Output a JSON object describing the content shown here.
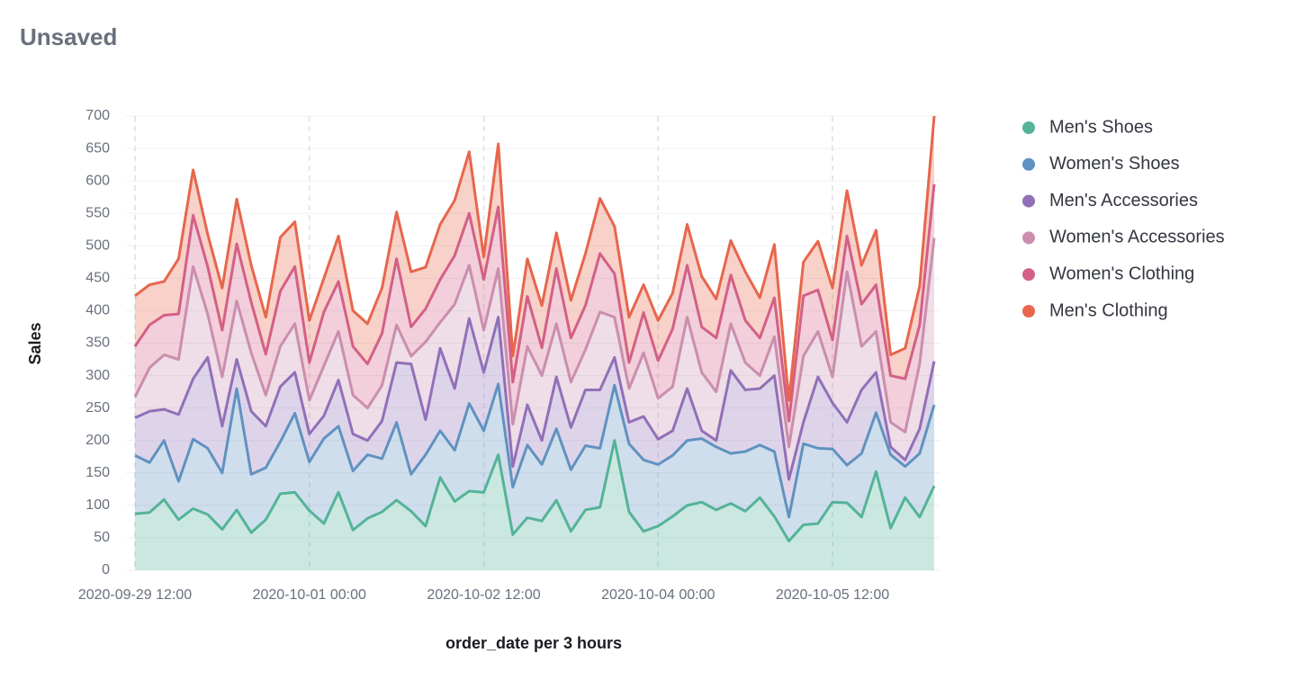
{
  "header": {
    "title": "Unsaved"
  },
  "chart_data": {
    "type": "stacked-area",
    "x_label": "order_date per 3 hours",
    "y_label": "Sales",
    "x": [
      "2020-09-29 12:00",
      "2020-09-29 15:00",
      "2020-09-29 18:00",
      "2020-09-29 21:00",
      "2020-09-30 00:00",
      "2020-09-30 03:00",
      "2020-09-30 06:00",
      "2020-09-30 09:00",
      "2020-09-30 12:00",
      "2020-09-30 15:00",
      "2020-09-30 18:00",
      "2020-09-30 21:00",
      "2020-10-01 00:00",
      "2020-10-01 03:00",
      "2020-10-01 06:00",
      "2020-10-01 09:00",
      "2020-10-01 12:00",
      "2020-10-01 15:00",
      "2020-10-01 18:00",
      "2020-10-01 21:00",
      "2020-10-02 00:00",
      "2020-10-02 03:00",
      "2020-10-02 06:00",
      "2020-10-02 09:00",
      "2020-10-02 12:00",
      "2020-10-02 15:00",
      "2020-10-02 18:00",
      "2020-10-02 21:00",
      "2020-10-03 00:00",
      "2020-10-03 03:00",
      "2020-10-03 06:00",
      "2020-10-03 09:00",
      "2020-10-03 12:00",
      "2020-10-03 15:00",
      "2020-10-03 18:00",
      "2020-10-03 21:00",
      "2020-10-04 00:00",
      "2020-10-04 03:00",
      "2020-10-04 06:00",
      "2020-10-04 09:00",
      "2020-10-04 12:00",
      "2020-10-04 15:00",
      "2020-10-04 18:00",
      "2020-10-04 21:00",
      "2020-10-05 00:00",
      "2020-10-05 03:00",
      "2020-10-05 06:00",
      "2020-10-05 09:00",
      "2020-10-05 12:00",
      "2020-10-05 15:00",
      "2020-10-05 18:00",
      "2020-10-05 21:00",
      "2020-10-06 00:00",
      "2020-10-06 03:00",
      "2020-10-06 06:00",
      "2020-10-06 09:00"
    ],
    "xticks": [
      "2020-09-29 12:00",
      "2020-10-01 00:00",
      "2020-10-02 12:00",
      "2020-10-04 00:00",
      "2020-10-05 12:00"
    ],
    "ylim": [
      0,
      700
    ],
    "yticks": [
      0,
      50,
      100,
      150,
      200,
      250,
      300,
      350,
      400,
      450,
      500,
      550,
      600,
      650,
      700
    ],
    "grid": true,
    "legend": "right",
    "series": [
      {
        "name": "Men's Shoes",
        "color": "#54b399",
        "values": [
          87,
          89,
          109,
          78,
          95,
          86,
          63,
          93,
          58,
          78,
          118,
          120,
          92,
          72,
          120,
          62,
          80,
          90,
          108,
          91,
          68,
          143,
          106,
          122,
          120,
          178,
          55,
          81,
          76,
          108,
          60,
          93,
          97,
          200,
          90,
          60,
          68,
          83,
          100,
          105,
          93,
          103,
          91,
          112,
          83,
          45,
          70,
          72,
          105,
          104,
          82,
          152,
          65,
          112,
          82,
          130
        ]
      },
      {
        "name": "Women's Shoes",
        "color": "#6092c0",
        "values": [
          90,
          77,
          91,
          59,
          107,
          102,
          87,
          187,
          90,
          80,
          80,
          122,
          75,
          131,
          102,
          91,
          98,
          82,
          120,
          57,
          110,
          72,
          79,
          135,
          95,
          109,
          73,
          112,
          87,
          110,
          95,
          99,
          91,
          85,
          105,
          110,
          95,
          94,
          100,
          98,
          97,
          77,
          92,
          81,
          100,
          37,
          125,
          116,
          82,
          58,
          98,
          91,
          113,
          48,
          98,
          125
        ]
      },
      {
        "name": "Men's Accessories",
        "color": "#9170b8",
        "values": [
          58,
          79,
          48,
          103,
          93,
          140,
          72,
          45,
          97,
          64,
          85,
          63,
          43,
          35,
          71,
          57,
          22,
          58,
          92,
          170,
          54,
          127,
          95,
          131,
          90,
          103,
          32,
          62,
          37,
          80,
          65,
          86,
          90,
          43,
          33,
          67,
          39,
          38,
          80,
          12,
          10,
          128,
          95,
          87,
          117,
          58,
          33,
          110,
          71,
          66,
          98,
          62,
          12,
          10,
          38,
          67
        ]
      },
      {
        "name": "Women's Accessories",
        "color": "#ca8eae",
        "values": [
          32,
          67,
          84,
          85,
          173,
          67,
          76,
          90,
          90,
          48,
          62,
          75,
          52,
          77,
          75,
          60,
          50,
          55,
          58,
          12,
          120,
          40,
          130,
          82,
          65,
          75,
          65,
          90,
          100,
          82,
          70,
          62,
          120,
          62,
          52,
          98,
          63,
          68,
          110,
          90,
          75,
          72,
          42,
          20,
          60,
          50,
          102,
          70,
          40,
          232,
          67,
          63,
          38,
          43,
          100,
          190
        ]
      },
      {
        "name": "Women's Clothing",
        "color": "#d36086",
        "values": [
          78,
          66,
          61,
          70,
          79,
          73,
          72,
          88,
          78,
          63,
          85,
          88,
          58,
          83,
          77,
          75,
          68,
          80,
          102,
          45,
          51,
          66,
          75,
          80,
          78,
          95,
          65,
          77,
          43,
          85,
          68,
          68,
          90,
          67,
          40,
          62,
          58,
          89,
          80,
          70,
          83,
          75,
          65,
          58,
          60,
          40,
          93,
          64,
          57,
          55,
          65,
          72,
          72,
          82,
          60,
          83
        ]
      },
      {
        "name": "Men's Clothing",
        "color": "#e7664c",
        "values": [
          78,
          62,
          52,
          85,
          70,
          50,
          65,
          69,
          57,
          57,
          83,
          69,
          65,
          52,
          70,
          55,
          62,
          70,
          72,
          85,
          64,
          85,
          85,
          95,
          35,
          97,
          40,
          58,
          65,
          55,
          58,
          80,
          85,
          73,
          70,
          43,
          62,
          55,
          63,
          78,
          60,
          53,
          75,
          62,
          82,
          32,
          52,
          75,
          80,
          70,
          60,
          84,
          32,
          47,
          60,
          105
        ]
      }
    ]
  }
}
